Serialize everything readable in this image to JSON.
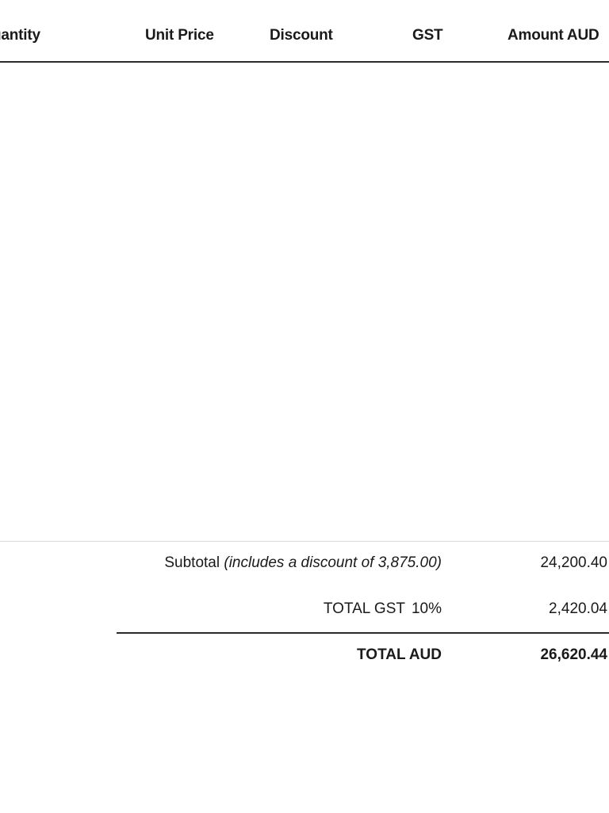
{
  "table_header": {
    "quantity": "uantity",
    "unit_price": "Unit Price",
    "discount": "Discount",
    "gst": "GST",
    "amount": "Amount AUD"
  },
  "summary": {
    "subtotal_label": "Subtotal",
    "subtotal_note": "(includes a discount of 3,875.00)",
    "subtotal_value": "24,200.40",
    "gst_label": "TOTAL GST",
    "gst_rate": "10%",
    "gst_value": "2,420.04",
    "total_label": "TOTAL AUD",
    "total_value": "26,620.44"
  }
}
